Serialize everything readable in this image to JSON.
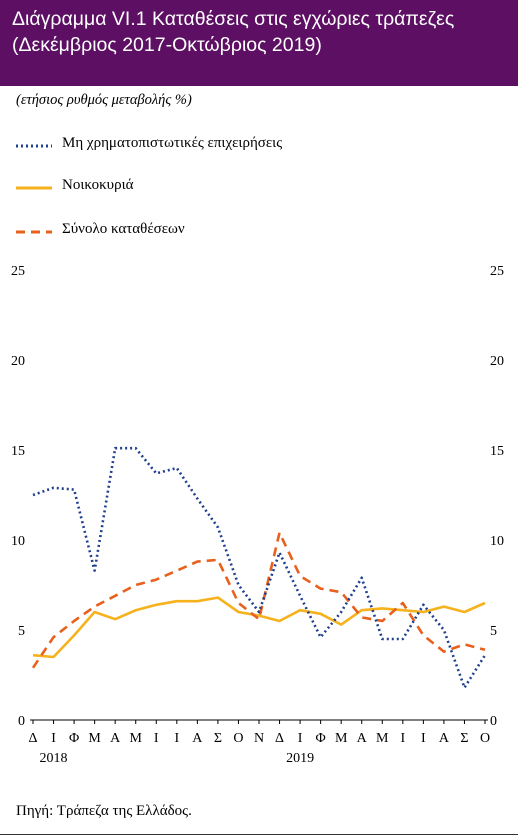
{
  "header": {
    "title_line1": "Διάγραμμα VI.1 Καταθέσεις στις εγχώριες τράπεζες",
    "title_line2": "(Δεκέμβριος 2017-Οκτώβριος 2019)"
  },
  "unit_label": "(ετήσιος ρυθμός μεταβολής %)",
  "source": "Πηγή: Τράπεζα  της Ελλάδος.",
  "colors": {
    "header_bg": "#5c0f63",
    "nfc": "#1f3f8f",
    "households": "#f5b21c",
    "total": "#e8601c"
  },
  "chart_data": {
    "type": "line",
    "categories": [
      "Δ",
      "Ι",
      "Φ",
      "Μ",
      "Α",
      "Μ",
      "Ι",
      "Ι",
      "Α",
      "Σ",
      "Ο",
      "Ν",
      "Δ",
      "Ι",
      "Φ",
      "Μ",
      "Α",
      "Μ",
      "Ι",
      "Ι",
      "Α",
      "Σ",
      "Ο"
    ],
    "year_labels": [
      {
        "label": "2018",
        "index": 1
      },
      {
        "label": "2019",
        "index": 13
      }
    ],
    "ylim": [
      0,
      25
    ],
    "yticks": [
      0,
      5,
      10,
      15,
      20,
      25
    ],
    "legend_position": "top-left",
    "series": [
      {
        "name": "Μη χρηματοπιστωτικές επιχειρήσεις",
        "style": "dotted",
        "color": "#1f3f8f",
        "values": [
          12.5,
          12.9,
          12.8,
          8.3,
          15.1,
          15.1,
          13.7,
          14.0,
          12.3,
          10.7,
          7.5,
          6.0,
          9.3,
          6.9,
          4.6,
          6.0,
          7.9,
          4.5,
          4.5,
          6.4,
          5.0,
          1.8,
          3.6
        ]
      },
      {
        "name": "Νοικοκυριά",
        "style": "solid",
        "color": "#f5b21c",
        "values": [
          3.6,
          3.5,
          4.7,
          6.0,
          5.6,
          6.1,
          6.4,
          6.6,
          6.6,
          6.8,
          6.0,
          5.8,
          5.5,
          6.1,
          5.9,
          5.3,
          6.1,
          6.2,
          6.1,
          6.0,
          6.3,
          6.0,
          6.5
        ]
      },
      {
        "name": "Σύνολο καταθέσεων",
        "style": "dashed",
        "color": "#e8601c",
        "values": [
          2.9,
          4.6,
          5.5,
          6.3,
          6.9,
          7.5,
          7.8,
          8.3,
          8.8,
          8.9,
          6.5,
          5.6,
          10.4,
          8.0,
          7.3,
          7.1,
          5.7,
          5.5,
          6.5,
          4.7,
          3.8,
          4.2,
          3.9
        ]
      }
    ]
  }
}
